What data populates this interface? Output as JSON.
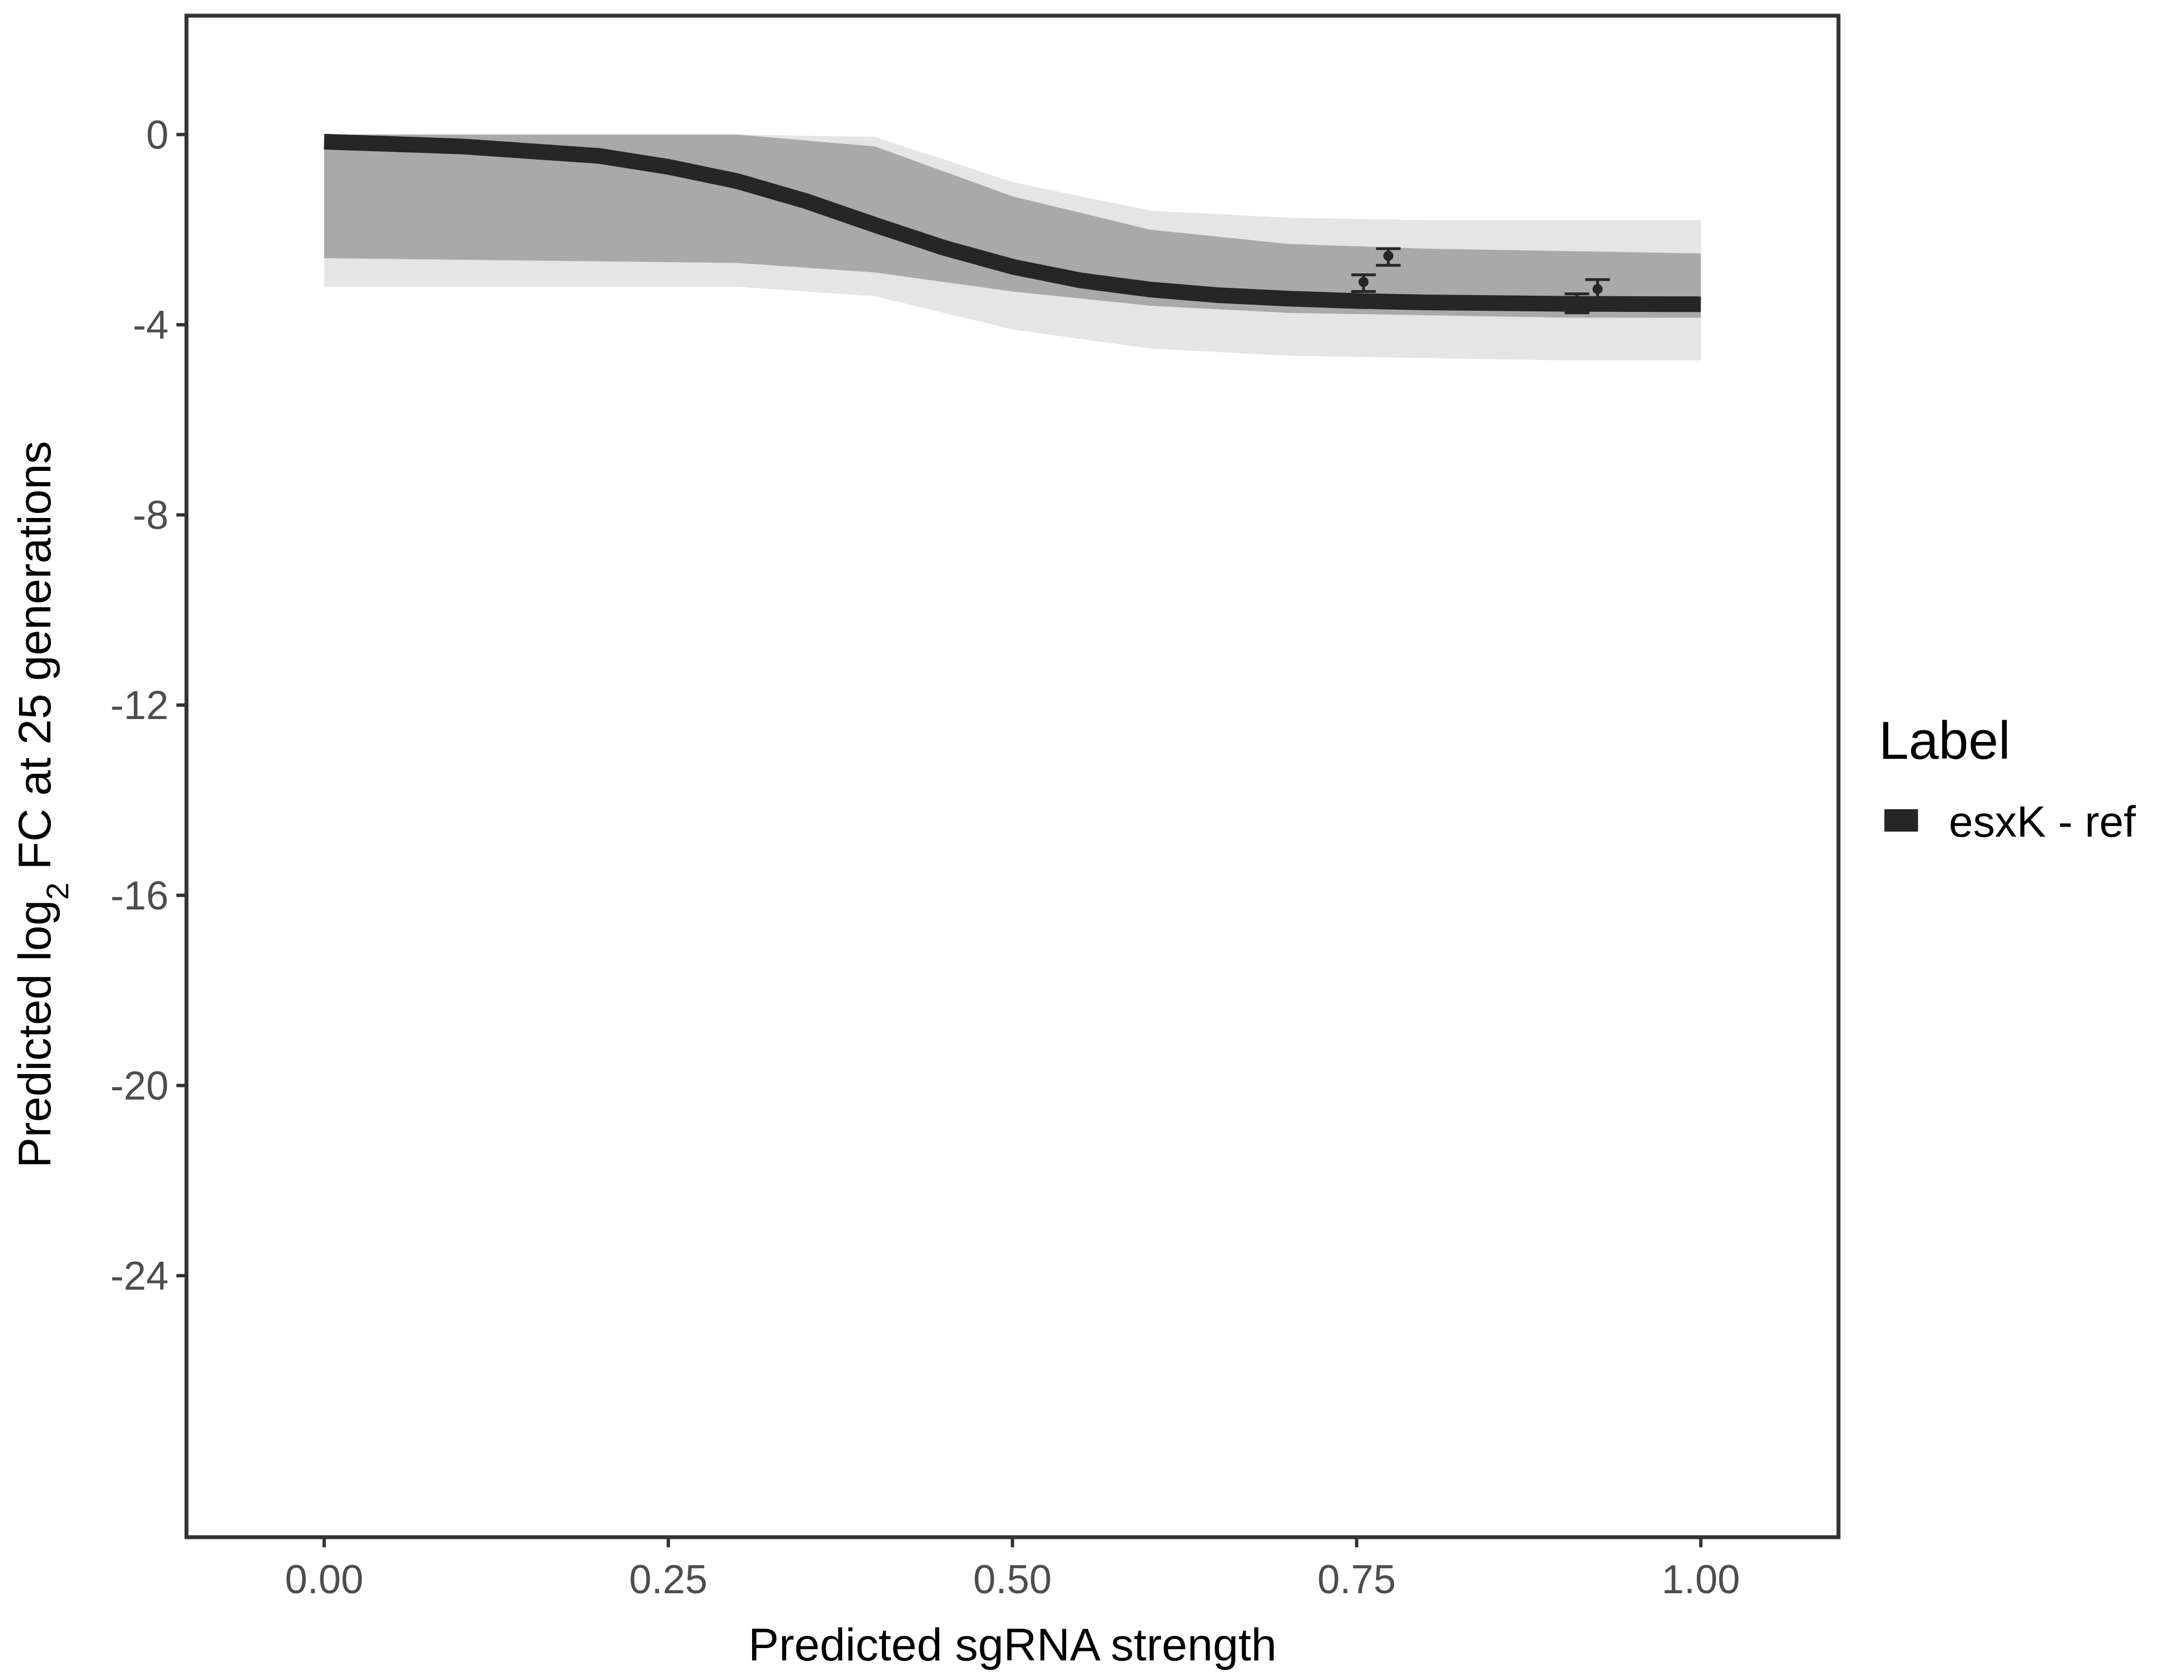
{
  "chart_data": {
    "type": "line",
    "xlabel": "Predicted sgRNA strength",
    "ylabel": {
      "prefix": "Predicted  log",
      "subscript": "2",
      "suffix": " FC at 25 generations"
    },
    "xlim": [
      -0.1,
      1.1
    ],
    "ylim": [
      -29.5,
      2.5
    ],
    "x_ticks": [
      0,
      0.25,
      0.5,
      0.75,
      1
    ],
    "x_tick_labels": [
      "0.00",
      "0.25",
      "0.50",
      "0.75",
      "1.00"
    ],
    "y_ticks": [
      0,
      -4,
      -8,
      -12,
      -16,
      -20,
      -24
    ],
    "y_tick_labels": [
      "0",
      "-4",
      "-8",
      "-12",
      "-16",
      "-20",
      "-24"
    ],
    "grid": false,
    "legend": {
      "title": "Label",
      "position": "right",
      "entries": [
        {
          "name": "esxK - ref",
          "color": "#262626"
        }
      ]
    },
    "series": [
      {
        "name": "esxK - ref",
        "color": "#262626",
        "x": [
          0,
          0.1,
          0.2,
          0.25,
          0.3,
          0.35,
          0.4,
          0.45,
          0.5,
          0.55,
          0.6,
          0.65,
          0.7,
          0.75,
          0.8,
          0.9,
          1.0
        ],
        "y": [
          -0.15,
          -0.25,
          -0.45,
          -0.68,
          -0.98,
          -1.4,
          -1.9,
          -2.38,
          -2.78,
          -3.07,
          -3.26,
          -3.38,
          -3.45,
          -3.5,
          -3.53,
          -3.56,
          -3.57
        ]
      }
    ],
    "posterior_band": {
      "description_color": "#a9a9a9",
      "upper": {
        "x": [
          0,
          0.3,
          0.4,
          0.5,
          0.6,
          0.7,
          0.8,
          0.9,
          1.0
        ],
        "y": [
          0,
          0,
          -0.05,
          -1.0,
          -1.6,
          -1.75,
          -1.8,
          -1.8,
          -1.8
        ]
      },
      "lower": {
        "x": [
          0,
          0.3,
          0.4,
          0.5,
          0.6,
          0.7,
          0.8,
          0.9,
          1.0
        ],
        "y": [
          -3.2,
          -3.2,
          -3.4,
          -4.1,
          -4.5,
          -4.65,
          -4.7,
          -4.75,
          -4.75
        ]
      },
      "dense_upper": {
        "x": [
          0,
          0.3,
          0.4,
          0.5,
          0.6,
          0.7,
          0.8,
          0.9,
          1.0
        ],
        "y": [
          0,
          0,
          -0.25,
          -1.3,
          -2.0,
          -2.3,
          -2.4,
          -2.45,
          -2.5
        ]
      },
      "dense_lower": {
        "x": [
          0,
          0.3,
          0.4,
          0.5,
          0.6,
          0.7,
          0.8,
          0.9,
          1.0
        ],
        "y": [
          -2.6,
          -2.7,
          -2.9,
          -3.3,
          -3.6,
          -3.75,
          -3.8,
          -3.85,
          -3.85
        ]
      }
    },
    "observed_points": [
      {
        "x": 0.755,
        "y": -3.1,
        "ymin": -3.3,
        "ymax": -2.95
      },
      {
        "x": 0.773,
        "y": -2.55,
        "ymin": -2.75,
        "ymax": -2.4
      },
      {
        "x": 0.91,
        "y": -3.5,
        "ymin": -3.75,
        "ymax": -3.35
      },
      {
        "x": 0.925,
        "y": -3.25,
        "ymin": -3.45,
        "ymax": -3.05
      }
    ]
  }
}
